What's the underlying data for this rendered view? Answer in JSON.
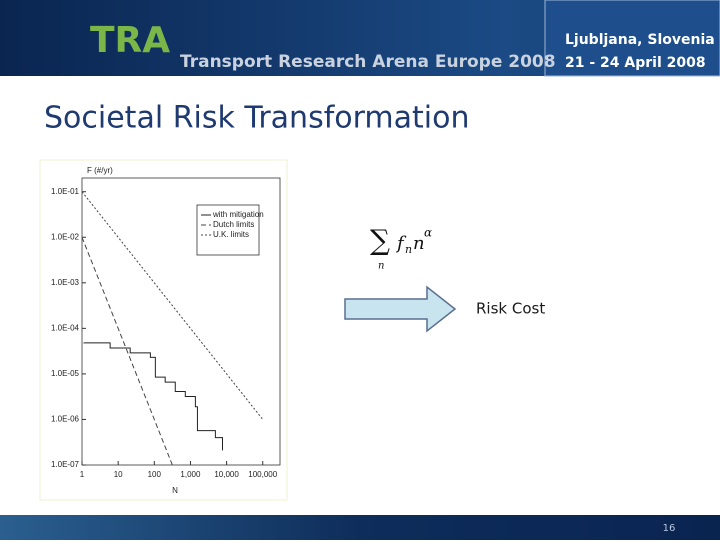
{
  "header": {
    "logo": "TRA",
    "event": "Transport Research Arena Europe 2008",
    "location": "Ljubljana, Slovenia",
    "dates": "21 - 24 April 2008"
  },
  "title": "Societal Risk Transformation",
  "chart_data": {
    "type": "line",
    "y_label": "F (#/yr)",
    "x_label": "N",
    "xlog": true,
    "ylog": true,
    "xlim": [
      1,
      300000
    ],
    "ylim": [
      1e-07,
      0.2
    ],
    "xticks": [
      1,
      10,
      100,
      {
        "value": 1000,
        "label": "1,000"
      },
      {
        "value": 10000,
        "label": "10,000"
      },
      {
        "value": 100000,
        "label": "100,000"
      }
    ],
    "yticks": [
      {
        "value": 0.1,
        "label": "1.0E-01"
      },
      {
        "value": 0.01,
        "label": "1.0E-02"
      },
      {
        "value": 0.001,
        "label": "1.0E-03"
      },
      {
        "value": 0.0001,
        "label": "1.0E-04"
      },
      {
        "value": 1e-05,
        "label": "1.0E-05"
      },
      {
        "value": 1e-06,
        "label": "1.0E-06"
      },
      {
        "value": 1e-07,
        "label": "1.0E-07"
      }
    ],
    "series": [
      {
        "name": "with mitigation",
        "color": "#222222",
        "dash": "none",
        "x": [
          1.1,
          6,
          21.5,
          78,
          107,
          200,
          380,
          720,
          1370,
          1560,
          4900,
          7700
        ],
        "values": [
          4.8e-05,
          3.7e-05,
          2.9e-05,
          2.3e-05,
          8.5e-06,
          6.6e-06,
          4.1e-06,
          3.2e-06,
          1.9e-06,
          5.7e-07,
          4e-07,
          2.1e-07
        ]
      },
      {
        "name": "Dutch limits",
        "color": "#444444",
        "dash": "5 3",
        "x": [
          1,
          316
        ],
        "values": [
          0.01,
          1e-07
        ]
      },
      {
        "name": "U.K. limits",
        "color": "#444444",
        "dash": "2 2",
        "x": [
          1,
          100000
        ],
        "values": [
          0.1,
          1e-06
        ]
      }
    ]
  },
  "formula": {
    "sum": "∑",
    "sum_index": "n",
    "f": "f",
    "f_sub": "n",
    "base": "n",
    "exponent": "α"
  },
  "arrow_label": "Risk Cost",
  "page_number": "16"
}
